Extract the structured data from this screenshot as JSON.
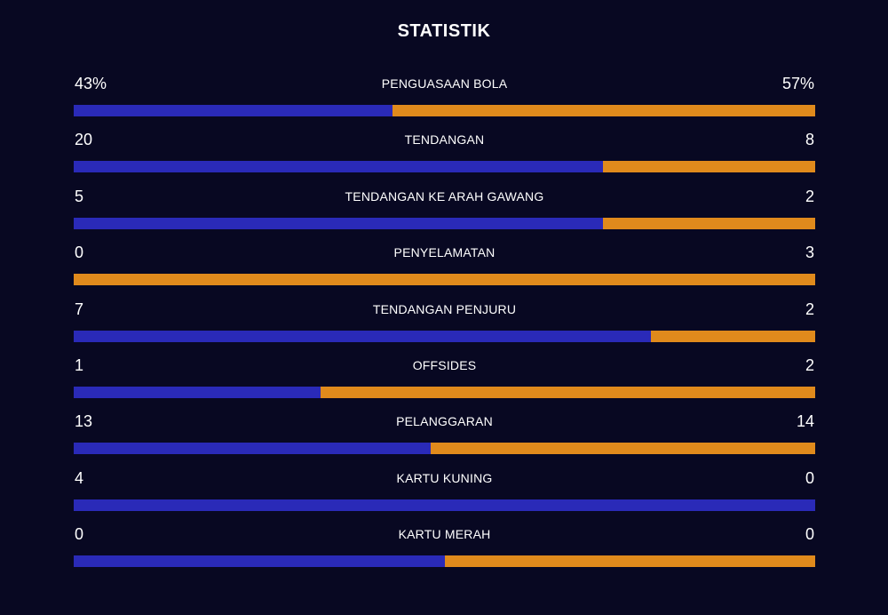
{
  "title": "STATISTIK",
  "colors": {
    "background": "#080822",
    "home": "#2a2ab8",
    "away": "#e08a1c"
  },
  "stats": [
    {
      "label": "PENGUASAAN BOLA",
      "left": "43%",
      "right": "57%",
      "home_share": 0.43
    },
    {
      "label": "TENDANGAN",
      "left": "20",
      "right": "8",
      "home_share": 0.714
    },
    {
      "label": "TENDANGAN KE ARAH GAWANG",
      "left": "5",
      "right": "2",
      "home_share": 0.714
    },
    {
      "label": "PENYELAMATAN",
      "left": "0",
      "right": "3",
      "home_share": 0.0
    },
    {
      "label": "TENDANGAN PENJURU",
      "left": "7",
      "right": "2",
      "home_share": 0.778
    },
    {
      "label": "OFFSIDES",
      "left": "1",
      "right": "2",
      "home_share": 0.333
    },
    {
      "label": "PELANGGARAN",
      "left": "13",
      "right": "14",
      "home_share": 0.481
    },
    {
      "label": "KARTU KUNING",
      "left": "4",
      "right": "0",
      "home_share": 1.0
    },
    {
      "label": "KARTU MERAH",
      "left": "0",
      "right": "0",
      "home_share": 0.5
    }
  ]
}
